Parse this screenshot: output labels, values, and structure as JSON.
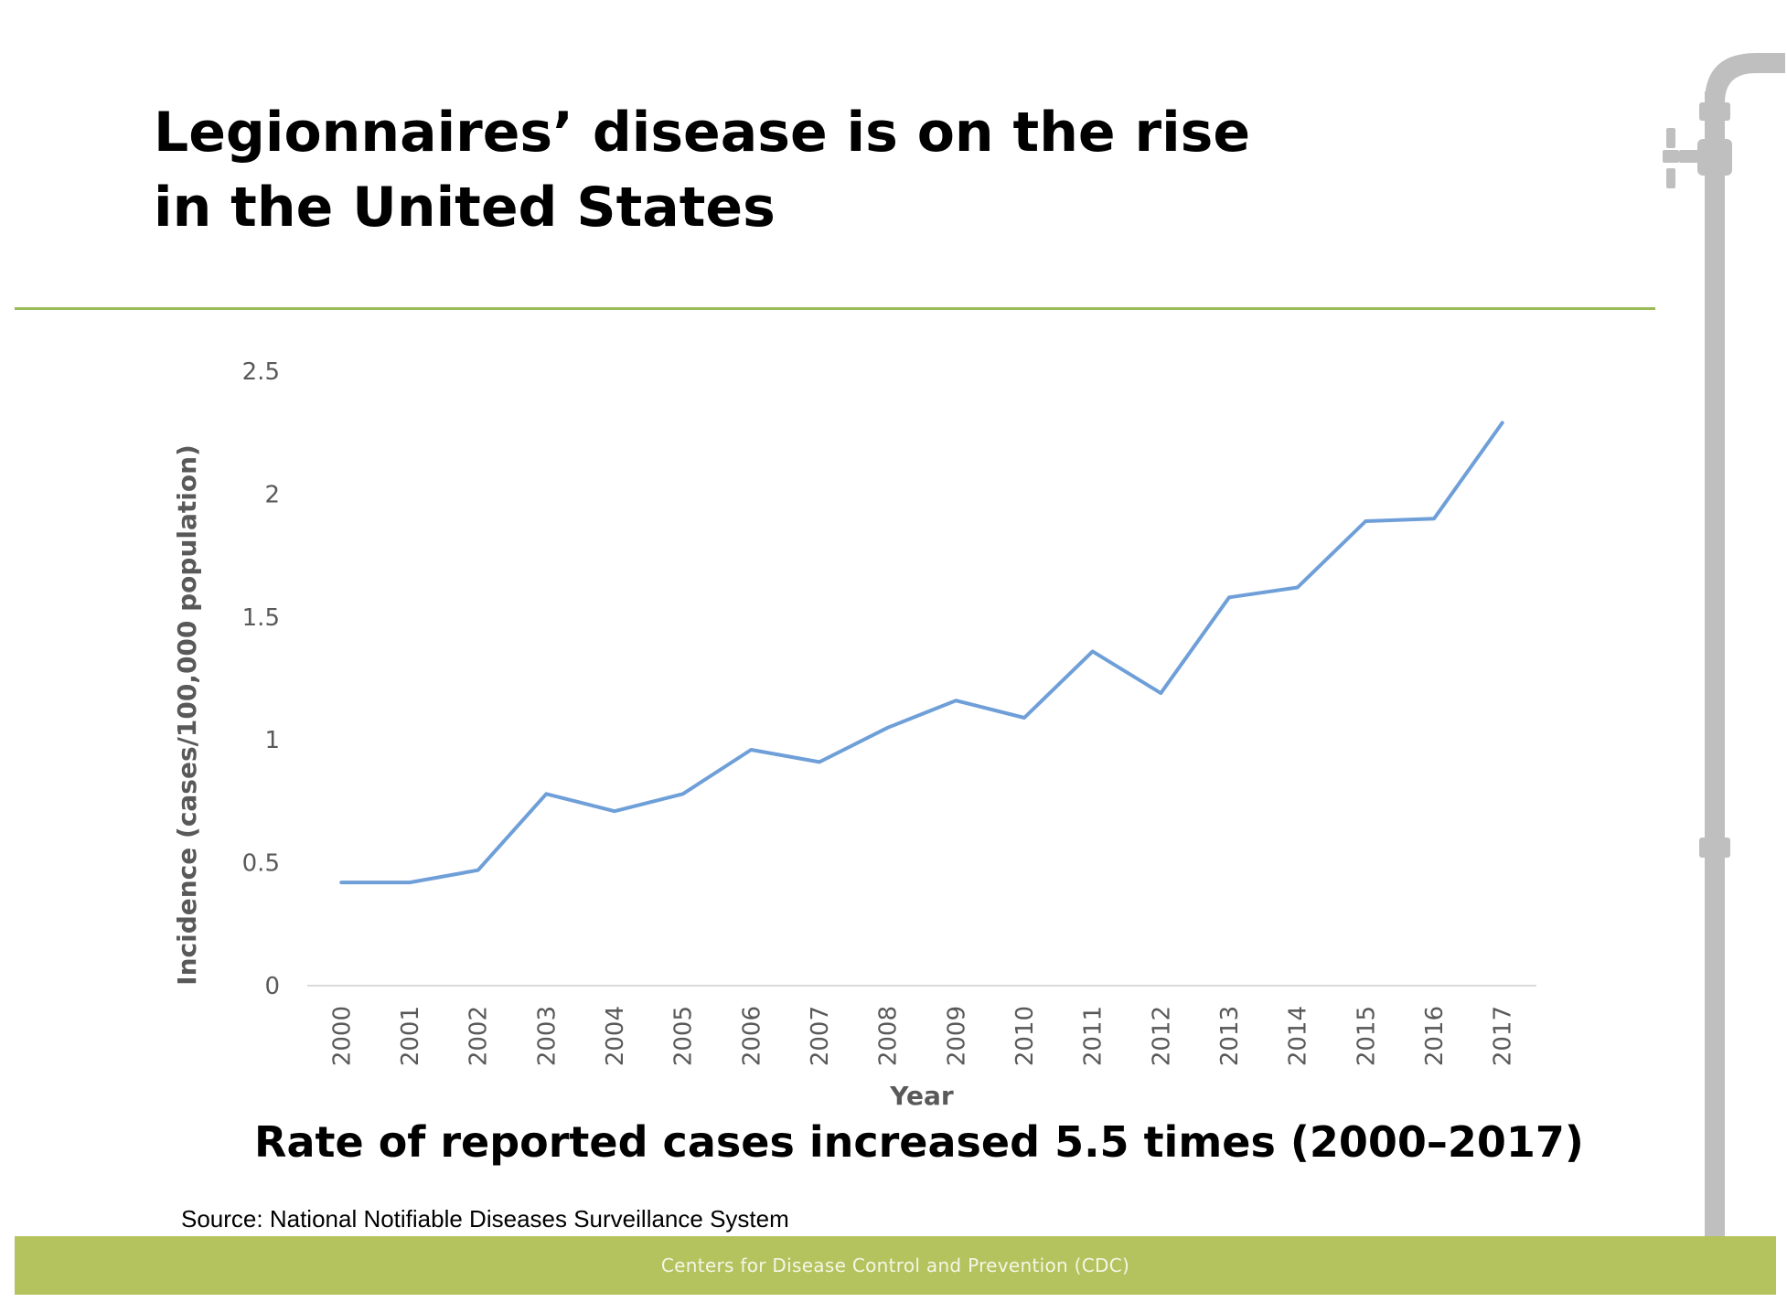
{
  "slide": {
    "title_line1": "Legionnaires’ disease is on the rise",
    "title_line2": "in the United States",
    "subtitle": "Rate of reported cases increased 5.5 times (2000–2017)",
    "source": "Source: National Notifiable Diseases Surveillance System",
    "footer": "Centers for Disease Control and Prevention (CDC)"
  },
  "colors": {
    "accent_green": "#9bbb59",
    "footer_green": "#b5c35e",
    "line_blue": "#6f9fd8",
    "pipe_gray": "#bfbfbf"
  },
  "chart_data": {
    "type": "line",
    "title": "",
    "xlabel": "Year",
    "ylabel": "Incidence (cases/100,000 population)",
    "ylim": [
      0,
      2.5
    ],
    "yticks": [
      "0",
      "0.5",
      "1",
      "1.5",
      "2",
      "2.5"
    ],
    "grid": false,
    "x": [
      "2000",
      "2001",
      "2002",
      "2003",
      "2004",
      "2005",
      "2006",
      "2007",
      "2008",
      "2009",
      "2010",
      "2011",
      "2012",
      "2013",
      "2014",
      "2015",
      "2016",
      "2017"
    ],
    "series": [
      {
        "values": [
          0.42,
          0.42,
          0.47,
          0.78,
          0.71,
          0.78,
          0.96,
          0.91,
          1.05,
          1.16,
          1.09,
          1.36,
          1.19,
          1.58,
          1.62,
          1.89,
          1.9,
          2.29
        ]
      }
    ]
  }
}
